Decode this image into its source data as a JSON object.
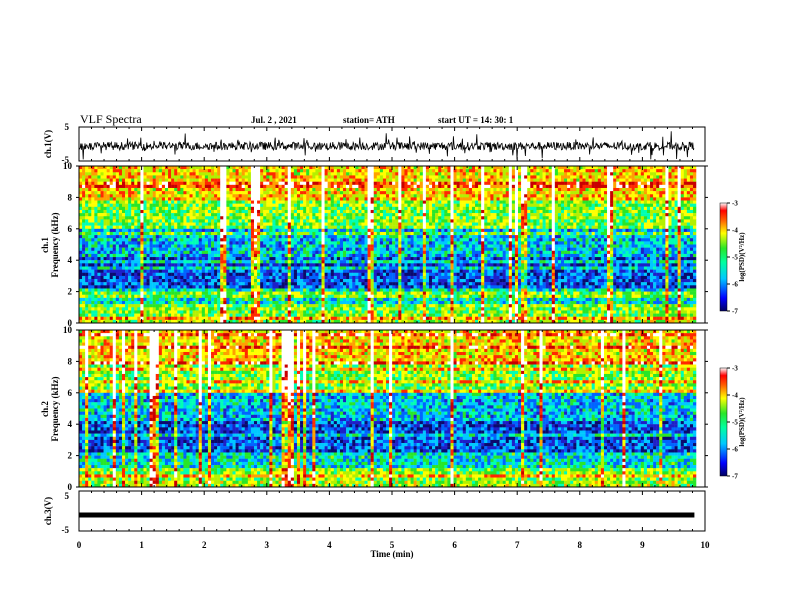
{
  "header": {
    "title": "VLF Spectra",
    "date": "Jul. 2 , 2021",
    "station": "station= ATH",
    "start": "start UT =  14: 30: 1"
  },
  "chart_data": [
    {
      "type": "line",
      "panel": "channel-1-waveform",
      "ylabel": "ch.1(V)",
      "ylim": [
        -5,
        5
      ],
      "y_ticks": [
        "5",
        "-5"
      ],
      "xlim": [
        0,
        9.83
      ],
      "description_values": "noisy waveform mostly between -2.5 and 1.5 V"
    },
    {
      "type": "heatmap",
      "panel": "channel-1-spectrogram",
      "ylabel": "ch.1\nFrequency  (kHz)",
      "ylim": [
        0,
        10
      ],
      "y_ticks": [
        "0",
        "2",
        "4",
        "6",
        "8",
        "10"
      ],
      "xlim": [
        0,
        9.83
      ],
      "colorbar": {
        "label": "log(PSD)(V²/Hz)",
        "range": [
          -7,
          -3
        ],
        "ticks": [
          "-3",
          "-4",
          "-5",
          "-6",
          "-7"
        ]
      }
    },
    {
      "type": "heatmap",
      "panel": "channel-2-spectrogram",
      "ylabel": "ch.2\nFrequency  (kHz)",
      "ylim": [
        0,
        10
      ],
      "y_ticks": [
        "0",
        "2",
        "4",
        "6",
        "8",
        "10"
      ],
      "xlim": [
        0,
        9.83
      ],
      "colorbar": {
        "label": "log(PSD)(V²/Hz)",
        "range": [
          -7,
          -3
        ],
        "ticks": [
          "-3",
          "-4",
          "-5",
          "-6",
          "-7"
        ]
      }
    },
    {
      "type": "line",
      "panel": "channel-3-waveform",
      "ylabel": "ch.3(V)",
      "ylim": [
        -5,
        5
      ],
      "y_ticks": [
        "5",
        "-5"
      ],
      "xlim": [
        0,
        9.83
      ],
      "value": -1.0
    }
  ],
  "x_axis": {
    "label": "Time  (min)",
    "range": [
      0,
      10
    ],
    "ticks": [
      "0",
      "1",
      "2",
      "3",
      "4",
      "5",
      "6",
      "7",
      "8",
      "9",
      "10"
    ]
  },
  "colors": {
    "scale": [
      "#0a0a6e",
      "#1e1ec8",
      "#0064ff",
      "#00c8ff",
      "#00ffb4",
      "#28e628",
      "#b4f000",
      "#ffff00",
      "#ffa000",
      "#ff2800",
      "#c80000",
      "#ffffff"
    ]
  }
}
